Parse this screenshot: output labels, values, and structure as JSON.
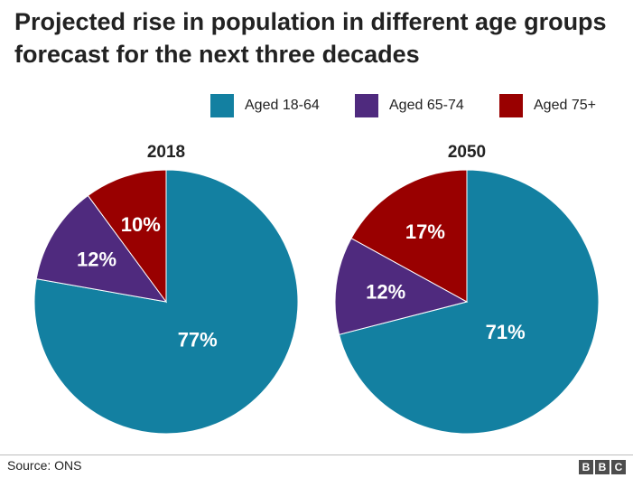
{
  "title": "Projected rise in population in different age groups forecast for the next three decades",
  "legend": [
    {
      "label": "Aged 18-64",
      "color": "#1380a1"
    },
    {
      "label": "Aged 65-74",
      "color": "#4f2a7e"
    },
    {
      "label": "Aged 75+",
      "color": "#990000"
    }
  ],
  "chart_data": [
    {
      "type": "pie",
      "title": "2018",
      "categories": [
        "Aged 18-64",
        "Aged 65-74",
        "Aged 75+"
      ],
      "values": [
        77,
        12,
        10
      ],
      "labels": [
        "77%",
        "12%",
        "10%"
      ],
      "colors": [
        "#1380a1",
        "#4f2a7e",
        "#990000"
      ]
    },
    {
      "type": "pie",
      "title": "2050",
      "categories": [
        "Aged 18-64",
        "Aged 65-74",
        "Aged 75+"
      ],
      "values": [
        71,
        12,
        17
      ],
      "labels": [
        "71%",
        "12%",
        "17%"
      ],
      "colors": [
        "#1380a1",
        "#4f2a7e",
        "#990000"
      ]
    }
  ],
  "footer": {
    "source": "Source: ONS",
    "logo_letters": [
      "B",
      "B",
      "C"
    ]
  }
}
